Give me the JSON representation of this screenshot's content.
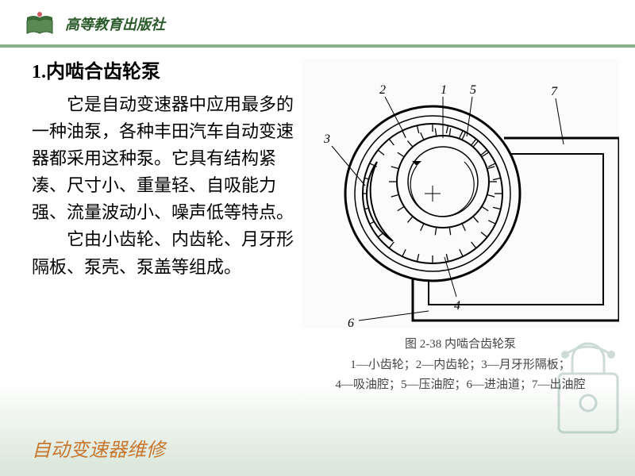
{
  "header": {
    "publisher": "高等教育出版社",
    "logo_colors": {
      "base": "#5a8a54",
      "top": "#3a6b38"
    }
  },
  "title": "1.内啮合齿轮泵",
  "paragraph1": "它是自动变速器中应用最多的一种油泵，各种丰田汽车自动变速器都采用这种泵。它具有结构紧凑、尺寸小、重量轻、自吸能力强、流量波动小、噪声低等特点。",
  "paragraph2": "它由小齿轮、内齿轮、月牙形隔板、泵壳、泵盖等组成。",
  "figure": {
    "caption_title": "图 2-38 内啮合齿轮泵",
    "caption_line1": "1—小齿轮；2—内齿轮；3—月牙形隔板；",
    "caption_line2": "4—吸油腔；5—压油腔；6—进油道；7—出油腔",
    "labels": [
      "1",
      "2",
      "3",
      "4",
      "5",
      "6",
      "7"
    ],
    "stroke": "#000000",
    "fill_bg": "#fbfbfb",
    "stroke_width": 1.6
  },
  "footer": "自动变速器维修",
  "watermark_color": "#6e9a8e"
}
